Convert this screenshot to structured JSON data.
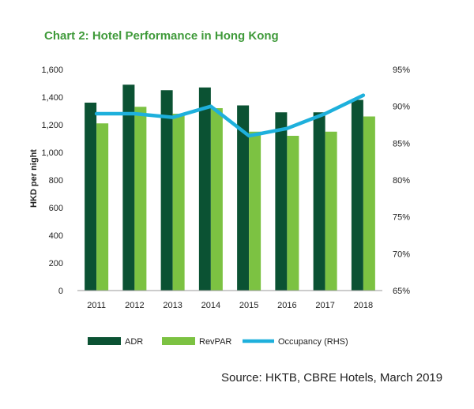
{
  "chart_data": {
    "type": "bar",
    "title": "Chart 2: Hotel Performance in Hong Kong",
    "ylabel": "HKD per night",
    "categories": [
      "2011",
      "2012",
      "2013",
      "2014",
      "2015",
      "2016",
      "2017",
      "2018"
    ],
    "series": [
      {
        "name": "ADR",
        "type": "bar",
        "axis": "left",
        "color": "#0b5233",
        "values": [
          1360,
          1490,
          1450,
          1470,
          1340,
          1290,
          1290,
          1380
        ]
      },
      {
        "name": "RevPAR",
        "type": "bar",
        "axis": "left",
        "color": "#7cc242",
        "values": [
          1210,
          1330,
          1280,
          1320,
          1150,
          1120,
          1150,
          1260
        ]
      },
      {
        "name": "Occupancy (RHS)",
        "type": "line",
        "axis": "right",
        "color": "#1eb0dc",
        "values": [
          89,
          89,
          88.5,
          90,
          86,
          87,
          89,
          91.5
        ]
      }
    ],
    "y_left": {
      "ylim": [
        0,
        1600
      ],
      "ticks": [
        "0",
        "200",
        "400",
        "600",
        "800",
        "1,000",
        "1,200",
        "1,400",
        "1,600"
      ]
    },
    "y_right": {
      "ylim": [
        65,
        95
      ],
      "ticks": [
        "65%",
        "70%",
        "75%",
        "80%",
        "85%",
        "90%",
        "95%"
      ]
    },
    "grid": false,
    "legend_position": "bottom",
    "source": "Source: HKTB, CBRE Hotels, March 2019",
    "colors": {
      "title": "#3f9a3a",
      "text": "#222222",
      "axis": "#999999"
    }
  }
}
